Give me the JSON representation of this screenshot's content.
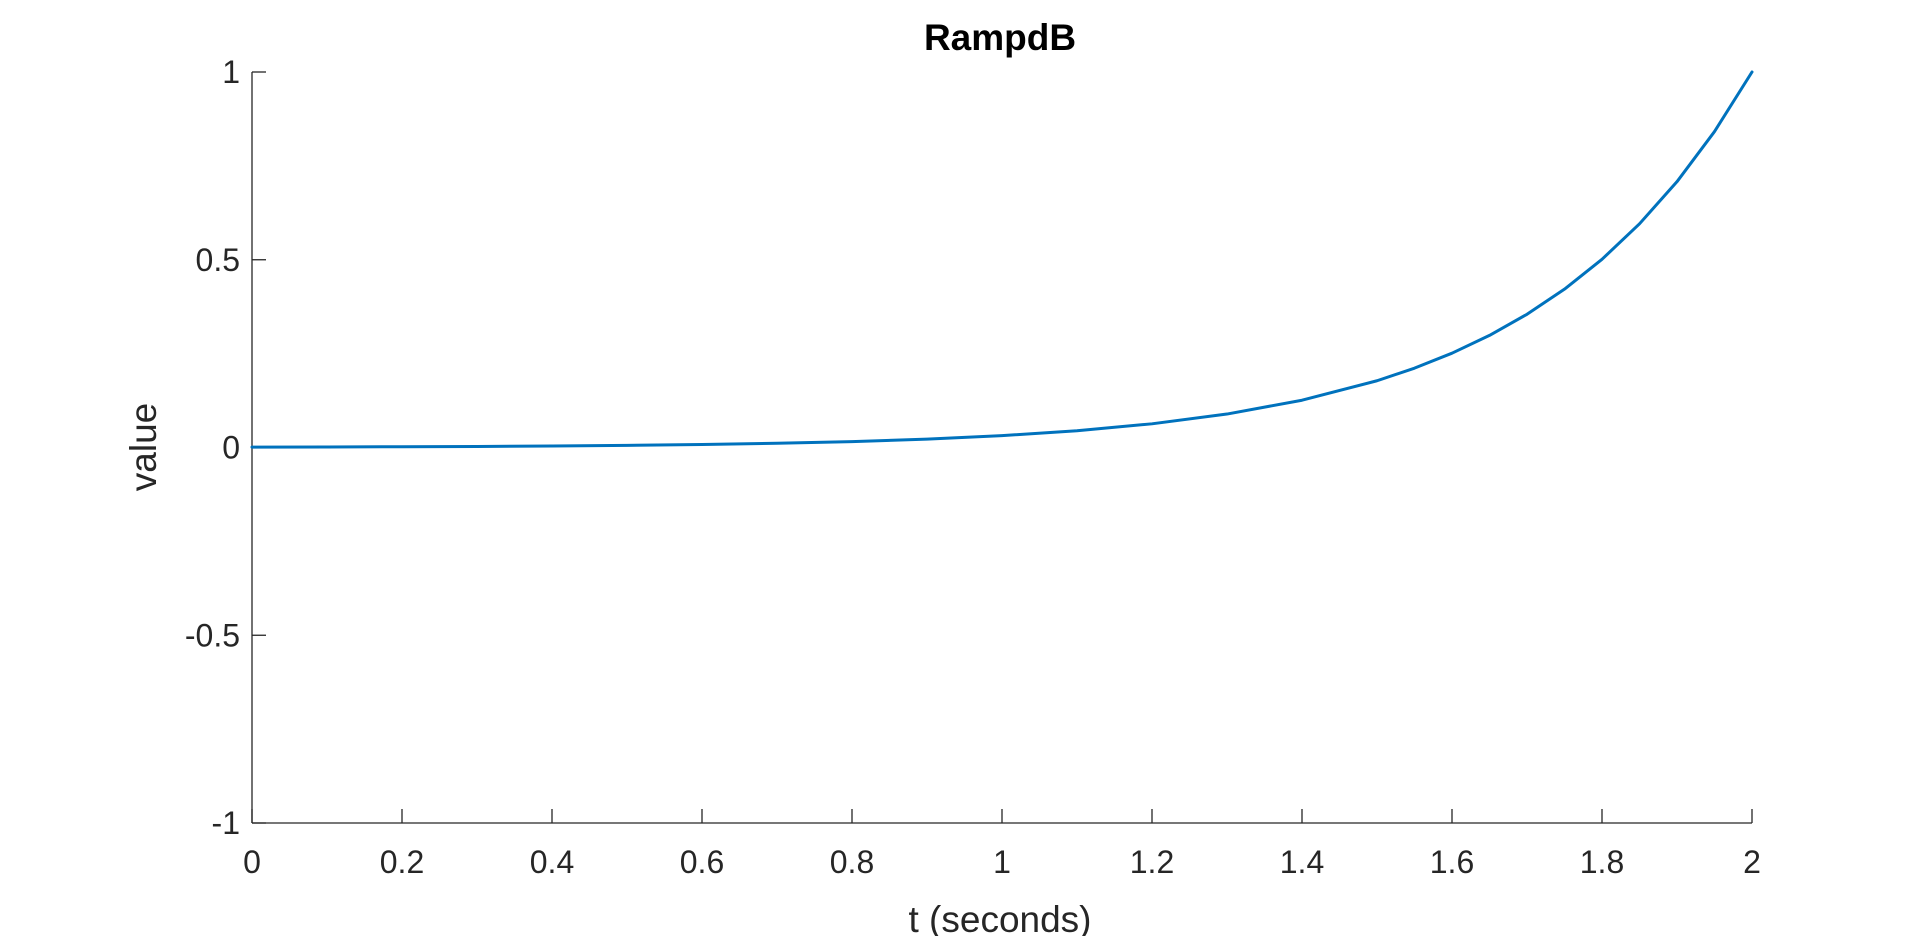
{
  "chart_data": {
    "type": "line",
    "title": "RampdB",
    "xlabel": "t (seconds)",
    "ylabel": "value",
    "xlim": [
      0,
      2
    ],
    "ylim": [
      -1,
      1
    ],
    "xticks": [
      0,
      0.2,
      0.4,
      0.6,
      0.8,
      1,
      1.2,
      1.4,
      1.6,
      1.8,
      2
    ],
    "xtick_labels": [
      "0",
      "0.2",
      "0.4",
      "0.6",
      "0.8",
      "1",
      "1.2",
      "1.4",
      "1.6",
      "1.8",
      "2"
    ],
    "yticks": [
      -1,
      -0.5,
      0,
      0.5,
      1
    ],
    "ytick_labels": [
      "-1",
      "-0.5",
      "0",
      "0.5",
      "1"
    ],
    "grid": false,
    "legend": "none",
    "series": [
      {
        "color": "#0072BD",
        "x": [
          0,
          0.1,
          0.2,
          0.3,
          0.4,
          0.5,
          0.6,
          0.7,
          0.8,
          0.9,
          1.0,
          1.1,
          1.2,
          1.3,
          1.4,
          1.5,
          1.55,
          1.6,
          1.65,
          1.7,
          1.75,
          1.8,
          1.85,
          1.9,
          1.95,
          2.0
        ],
        "y": [
          0.001,
          0.0014,
          0.002,
          0.0028,
          0.004,
          0.0056,
          0.0079,
          0.0112,
          0.0158,
          0.0224,
          0.0316,
          0.0447,
          0.0631,
          0.0891,
          0.1259,
          0.1778,
          0.2113,
          0.2512,
          0.2985,
          0.3548,
          0.4217,
          0.5012,
          0.5957,
          0.7079,
          0.8414,
          1.0
        ]
      }
    ]
  }
}
